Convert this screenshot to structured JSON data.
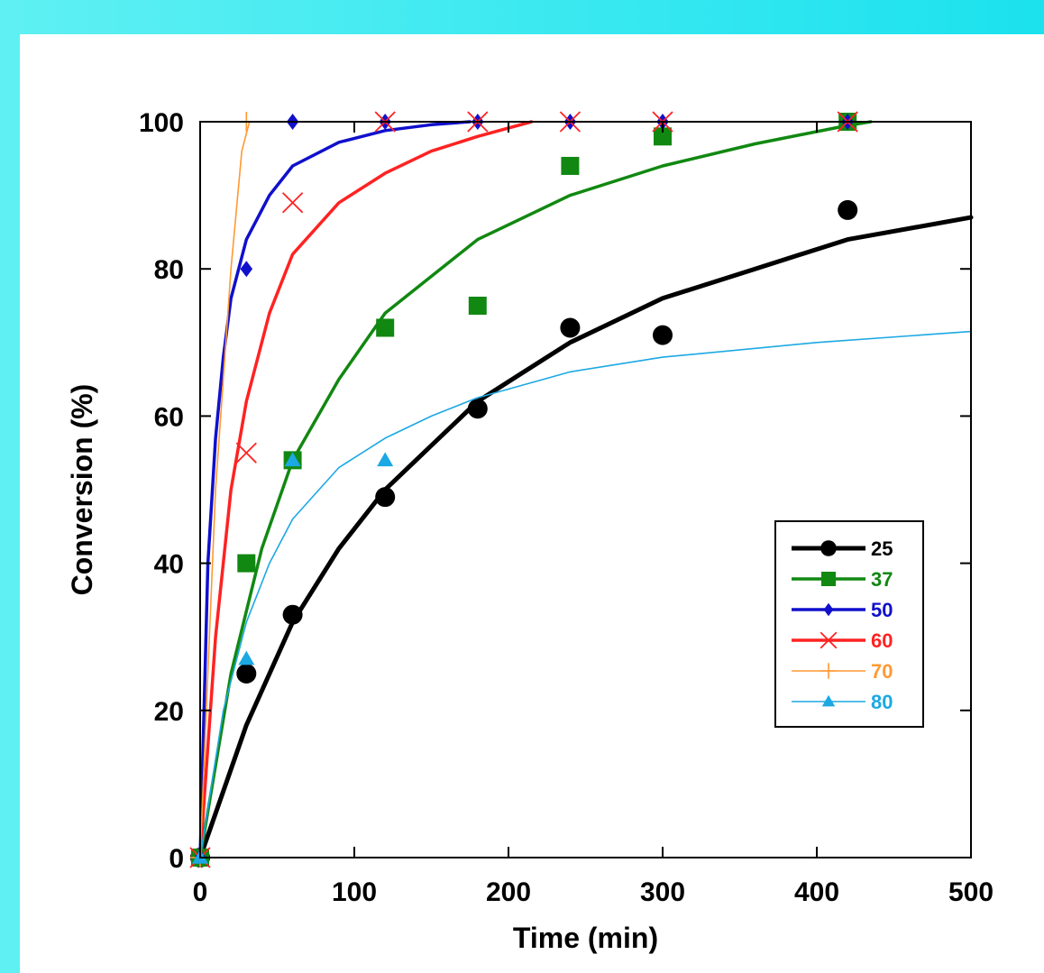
{
  "chart_data": {
    "type": "scatter",
    "title": "",
    "xlabel": "Time (min)",
    "ylabel": "Conversion (%)",
    "xlim": [
      0,
      500
    ],
    "ylim": [
      0,
      100
    ],
    "xticks": [
      0,
      100,
      200,
      300,
      400,
      500
    ],
    "yticks": [
      0,
      20,
      40,
      60,
      80,
      100
    ],
    "grid": false,
    "legend_position": "bottom-right",
    "series": [
      {
        "name": "25",
        "color": "#000000",
        "marker": "circle",
        "line_style": "thick",
        "points": [
          [
            0,
            0
          ],
          [
            30,
            25
          ],
          [
            60,
            33
          ],
          [
            120,
            49
          ],
          [
            180,
            61
          ],
          [
            240,
            72
          ],
          [
            300,
            71
          ],
          [
            420,
            88
          ]
        ],
        "fit_curve": [
          [
            0,
            0
          ],
          [
            30,
            18
          ],
          [
            60,
            32
          ],
          [
            90,
            42
          ],
          [
            120,
            50
          ],
          [
            150,
            56
          ],
          [
            180,
            62
          ],
          [
            210,
            66
          ],
          [
            240,
            70
          ],
          [
            300,
            76
          ],
          [
            360,
            80
          ],
          [
            420,
            84
          ],
          [
            500,
            87
          ]
        ]
      },
      {
        "name": "37",
        "color": "#118811",
        "marker": "square",
        "line_style": "medium",
        "points": [
          [
            0,
            0
          ],
          [
            30,
            40
          ],
          [
            60,
            54
          ],
          [
            120,
            72
          ],
          [
            180,
            75
          ],
          [
            240,
            94
          ],
          [
            300,
            98
          ],
          [
            420,
            100
          ]
        ],
        "fit_curve": [
          [
            0,
            0
          ],
          [
            20,
            25
          ],
          [
            40,
            42
          ],
          [
            60,
            54
          ],
          [
            90,
            65
          ],
          [
            120,
            74
          ],
          [
            150,
            79
          ],
          [
            180,
            84
          ],
          [
            240,
            90
          ],
          [
            300,
            94
          ],
          [
            360,
            97
          ],
          [
            420,
            99.5
          ],
          [
            435,
            100
          ]
        ]
      },
      {
        "name": "50",
        "color": "#1010cc",
        "marker": "diamond",
        "line_style": "medium",
        "points": [
          [
            0,
            0
          ],
          [
            30,
            80
          ],
          [
            60,
            100
          ],
          [
            120,
            100
          ],
          [
            180,
            100
          ],
          [
            240,
            100
          ],
          [
            300,
            100
          ],
          [
            420,
            100
          ]
        ],
        "fit_curve": [
          [
            0,
            0
          ],
          [
            5,
            40
          ],
          [
            10,
            57
          ],
          [
            15,
            68
          ],
          [
            20,
            76
          ],
          [
            30,
            84
          ],
          [
            45,
            90
          ],
          [
            60,
            94
          ],
          [
            90,
            97.2
          ],
          [
            120,
            98.8
          ],
          [
            150,
            99.6
          ],
          [
            175,
            100
          ]
        ]
      },
      {
        "name": "60",
        "color": "#ff2222",
        "marker": "x",
        "line_style": "medium",
        "points": [
          [
            0,
            0
          ],
          [
            30,
            55
          ],
          [
            60,
            89
          ],
          [
            120,
            100
          ],
          [
            180,
            100
          ],
          [
            240,
            100
          ],
          [
            300,
            100
          ],
          [
            420,
            100
          ]
        ],
        "fit_curve": [
          [
            0,
            0
          ],
          [
            10,
            30
          ],
          [
            20,
            50
          ],
          [
            30,
            62
          ],
          [
            45,
            74
          ],
          [
            60,
            82
          ],
          [
            90,
            89
          ],
          [
            120,
            93
          ],
          [
            150,
            96
          ],
          [
            180,
            98
          ],
          [
            215,
            100
          ]
        ]
      },
      {
        "name": "70",
        "color": "#ff9933",
        "marker": "plus",
        "line_style": "thin",
        "points": [
          [
            0,
            0
          ],
          [
            30,
            100
          ]
        ],
        "fit_curve": [
          [
            0,
            0
          ],
          [
            10,
            50
          ],
          [
            20,
            80
          ],
          [
            27,
            96
          ],
          [
            32,
            100
          ]
        ]
      },
      {
        "name": "80",
        "color": "#1ca8e3",
        "marker": "triangle",
        "line_style": "thin",
        "points": [
          [
            0,
            0
          ],
          [
            30,
            27
          ],
          [
            60,
            54
          ],
          [
            120,
            54
          ]
        ],
        "fit_curve": [
          [
            0,
            0
          ],
          [
            15,
            20
          ],
          [
            30,
            32
          ],
          [
            45,
            40
          ],
          [
            60,
            46
          ],
          [
            90,
            53
          ],
          [
            120,
            57
          ],
          [
            150,
            60
          ],
          [
            180,
            62.5
          ],
          [
            240,
            66
          ],
          [
            300,
            68
          ],
          [
            400,
            70
          ],
          [
            500,
            71.5
          ]
        ]
      }
    ]
  }
}
